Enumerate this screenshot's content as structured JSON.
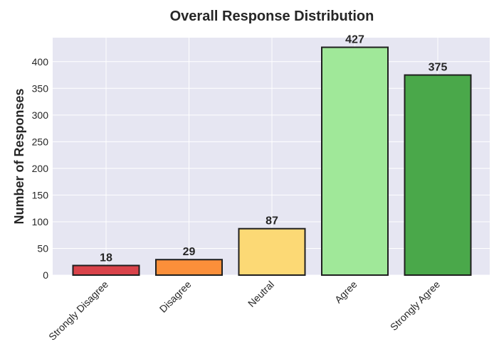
{
  "chart_data": {
    "type": "bar",
    "title": "Overall Response Distribution",
    "xlabel": "",
    "ylabel": "Number of Responses",
    "categories": [
      "Strongly Disagree",
      "Disagree",
      "Neutral",
      "Agree",
      "Strongly Agree"
    ],
    "values": [
      18,
      29,
      87,
      427,
      375
    ],
    "value_labels": [
      "18",
      "29",
      "87",
      "427",
      "375"
    ],
    "colors": [
      "#d9434a",
      "#fb8f3a",
      "#fcd975",
      "#a0e899",
      "#4aa84a"
    ],
    "ylim": [
      0,
      445
    ],
    "yticks": [
      0,
      50,
      100,
      150,
      200,
      250,
      300,
      350,
      400
    ],
    "grid": true,
    "plot_background": "#e6e6f2"
  }
}
